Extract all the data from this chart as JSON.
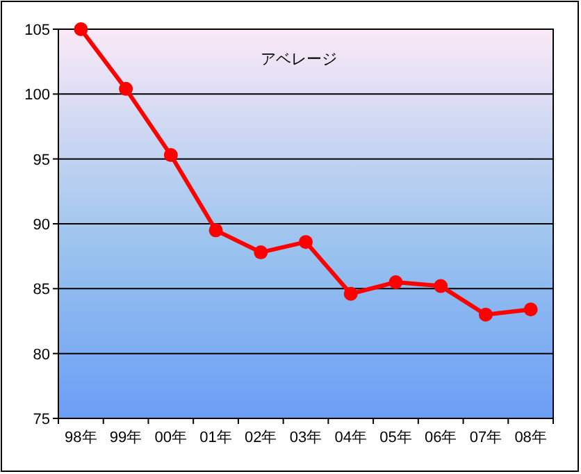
{
  "chart_data": {
    "type": "line",
    "title": "アベレージ",
    "categories": [
      "98年",
      "99年",
      "00年",
      "01年",
      "02年",
      "03年",
      "04年",
      "05年",
      "06年",
      "07年",
      "08年"
    ],
    "series": [
      {
        "color": "#ff0000",
        "values": [
          105,
          100.4,
          95.3,
          89.5,
          87.8,
          88.6,
          84.6,
          85.5,
          85.2,
          83.0,
          83.4
        ]
      }
    ],
    "ylim": [
      75,
      105
    ],
    "yticks": [
      75,
      80,
      85,
      90,
      95,
      100,
      105
    ],
    "grid": "y",
    "marker": "circle",
    "line_style": "solid"
  }
}
